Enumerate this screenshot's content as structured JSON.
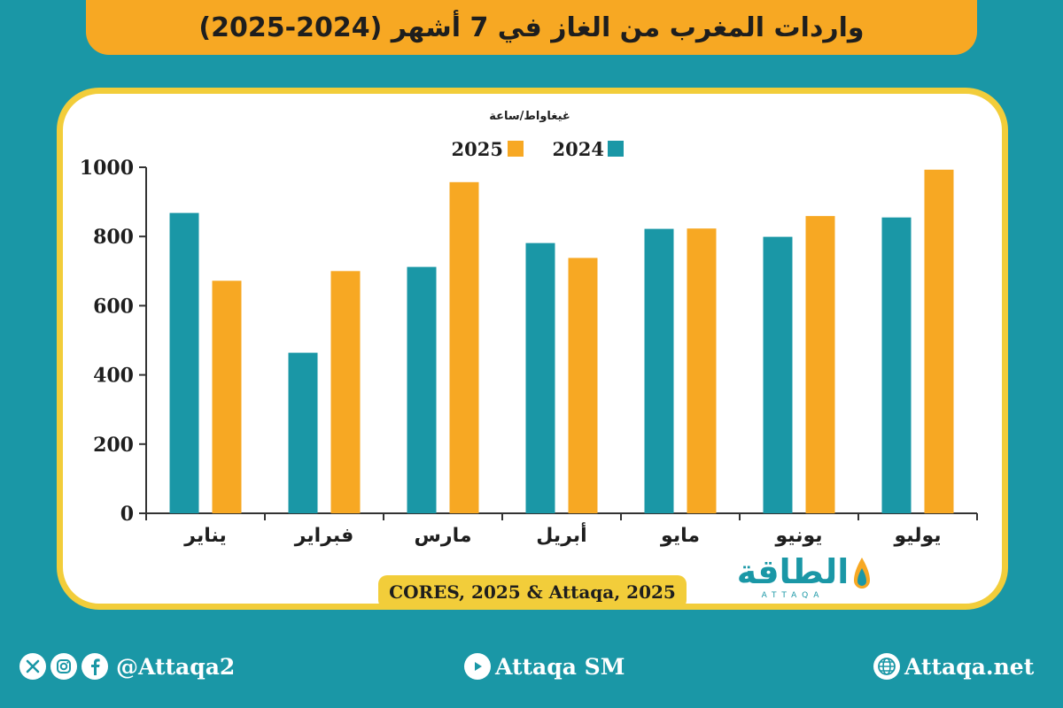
{
  "title": "واردات المغرب من الغاز في 7 أشهر (2024-2025)",
  "chart_data": {
    "type": "bar",
    "unit_label": "غيغاواط/ساعة",
    "categories": [
      "يناير",
      "فبراير",
      "مارس",
      "أبريل",
      "مايو",
      "يونيو",
      "يوليو"
    ],
    "series": [
      {
        "name": "2024",
        "values": [
          868,
          464,
          712,
          781,
          822,
          799,
          855
        ],
        "color": "#1a97a6"
      },
      {
        "name": "2025",
        "values": [
          672,
          700,
          957,
          738,
          823,
          859,
          993
        ],
        "color": "#f7a823"
      }
    ],
    "ylim": [
      0,
      1000
    ],
    "y_ticks": [
      "0",
      "200",
      "400",
      "600",
      "800",
      "1000"
    ],
    "grid": false,
    "legend_position": "top-center"
  },
  "source": "CORES, 2025 & Attaqa, 2025",
  "logo": {
    "arabic": "الطاقة",
    "latin": "ATTAQA"
  },
  "footer": {
    "social_handle": "@Attaqa2",
    "youtube": "Attaqa SM",
    "website": "Attaqa.net"
  },
  "colors": {
    "background": "#1a97a6",
    "accent": "#f7a823",
    "border": "#f2cd3a"
  }
}
